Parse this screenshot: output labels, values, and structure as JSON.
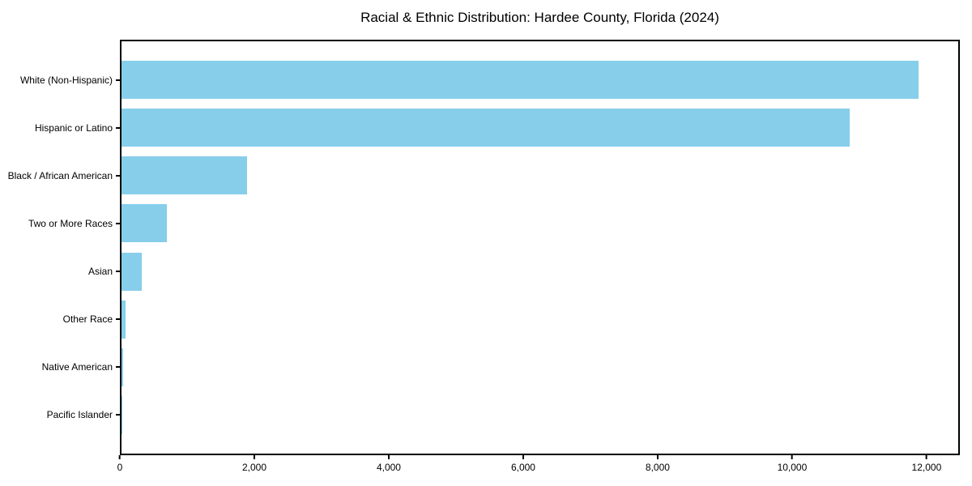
{
  "chart_data": {
    "type": "bar",
    "orientation": "horizontal",
    "title": "Racial & Ethnic Distribution: Hardee County, Florida (2024)",
    "categories": [
      "White (Non-Hispanic)",
      "Hispanic or Latino",
      "Black / African American",
      "Two or More Races",
      "Asian",
      "Other Race",
      "Native American",
      "Pacific Islander"
    ],
    "values": [
      11900,
      10870,
      1880,
      680,
      300,
      65,
      20,
      5
    ],
    "xlabel": "",
    "ylabel": "",
    "xlim": [
      0,
      12495
    ],
    "xticks": {
      "values": [
        0,
        2000,
        4000,
        6000,
        8000,
        10000,
        12000
      ],
      "labels": [
        "0",
        "2,000",
        "4,000",
        "6,000",
        "8,000",
        "10,000",
        "12,000"
      ]
    },
    "bar_color": "#87CEEB",
    "frame_color": "#000000",
    "text_color": "#000000",
    "background": "#FFFFFF",
    "grid": false,
    "legend": "none"
  }
}
